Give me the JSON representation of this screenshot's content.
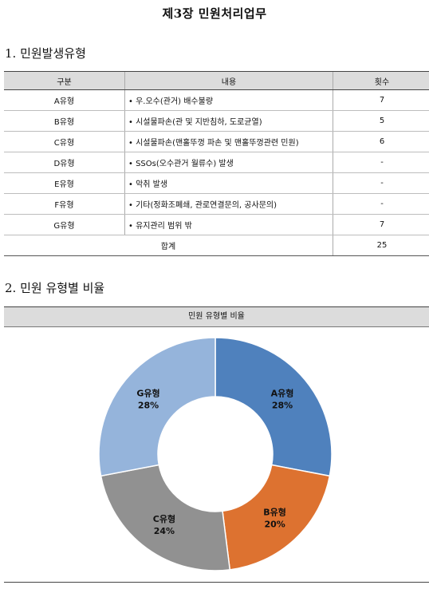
{
  "document": {
    "title": "제3장  민원처리업무",
    "section1_heading": "1. 민원발생유형",
    "section2_heading": "2. 민원 유형별 비율"
  },
  "table": {
    "headers": [
      "구분",
      "내용",
      "횟수"
    ],
    "rows": [
      {
        "type": "A유형",
        "content": "• 우.오수(관거) 배수불량",
        "count": "7"
      },
      {
        "type": "B유형",
        "content": "• 시설물파손(관 및 지반침하, 도로균열)",
        "count": "5"
      },
      {
        "type": "C유형",
        "content": "• 시설물파손(맨홀뚜껑 파손 및 맨홀뚜껑관련 민원)",
        "count": "6"
      },
      {
        "type": "D유형",
        "content": "• SSOs(오수관거 월류수) 발생",
        "count": "-"
      },
      {
        "type": "E유형",
        "content": "• 악취 발생",
        "count": "-"
      },
      {
        "type": "F유형",
        "content": "• 기타(정화조폐쇄, 관로연결문의, 공사문의)",
        "count": "-"
      },
      {
        "type": "G유형",
        "content": "• 유지관리 범위 밖",
        "count": "7"
      }
    ],
    "total_label": "합계",
    "total_value": "25"
  },
  "chart_data": {
    "type": "pie",
    "title": "민원 유형별 비율",
    "slices": [
      {
        "label": "A유형",
        "value": 28,
        "display": "28%",
        "color": "#4f81bd"
      },
      {
        "label": "B유형",
        "value": 20,
        "display": "20%",
        "color": "#dd7230"
      },
      {
        "label": "C유형",
        "value": 24,
        "display": "24%",
        "color": "#919191"
      },
      {
        "label": "G유형",
        "value": 28,
        "display": "28%",
        "color": "#95b4db"
      }
    ]
  }
}
